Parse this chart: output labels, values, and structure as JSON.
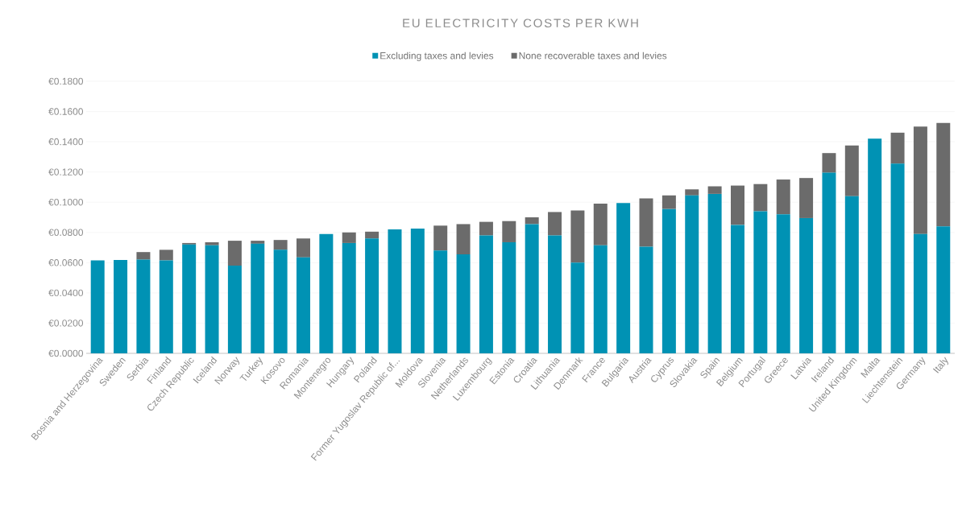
{
  "chart_data": {
    "type": "bar",
    "title": "EU ELECTRICITY COSTS PER KWH",
    "stacked": true,
    "legend": "top",
    "grid": "y",
    "categories": [
      "Bosnia and Herzegovina",
      "Sweden",
      "Serbia",
      "Finland",
      "Czech Republic",
      "Iceland",
      "Norway",
      "Turkey",
      "Kosovo",
      "Romania",
      "Montenegro",
      "Hungary",
      "Poland",
      "Former Yugoslav Republic of...",
      "Moldova",
      "Slovenia",
      "Netherlands",
      "Luxembourg",
      "Estonia",
      "Croatia",
      "Lithuania",
      "Denmark",
      "France",
      "Bulgaria",
      "Austria",
      "Cyprus",
      "Slovakia",
      "Spain",
      "Belgium",
      "Portugal",
      "Greece",
      "Latvia",
      "Ireland",
      "United Kingdom",
      "Malta",
      "Liechtenstein",
      "Germany",
      "Italy"
    ],
    "series": [
      {
        "name": "Excluding taxes and levies",
        "color": "#0092b4",
        "values": [
          0.0615,
          0.0618,
          0.062,
          0.0615,
          0.072,
          0.0715,
          0.058,
          0.0725,
          0.0685,
          0.0635,
          0.079,
          0.073,
          0.076,
          0.082,
          0.0825,
          0.068,
          0.0655,
          0.078,
          0.0735,
          0.0855,
          0.078,
          0.06,
          0.0715,
          0.0995,
          0.0705,
          0.0955,
          0.1045,
          0.1055,
          0.085,
          0.094,
          0.092,
          0.0895,
          0.1195,
          0.104,
          0.142,
          0.1255,
          0.079,
          0.084
        ]
      },
      {
        "name": "None recoverable taxes and levies",
        "color": "#6b6b6b",
        "values": [
          0,
          0,
          0.005,
          0.007,
          0.001,
          0.002,
          0.0165,
          0.002,
          0.0065,
          0.0125,
          0,
          0.007,
          0.0045,
          0,
          0,
          0.0165,
          0.02,
          0.009,
          0.014,
          0.0045,
          0.0155,
          0.0345,
          0.0275,
          0,
          0.032,
          0.009,
          0.004,
          0.005,
          0.026,
          0.018,
          0.023,
          0.0265,
          0.013,
          0.0335,
          0,
          0.0205,
          0.071,
          0.0685
        ]
      }
    ],
    "ylim": [
      0,
      0.18
    ],
    "yticks": [
      {
        "value": 0,
        "label": "€0.0000"
      },
      {
        "value": 0.02,
        "label": "€0.0200"
      },
      {
        "value": 0.04,
        "label": "€0.0400"
      },
      {
        "value": 0.06,
        "label": "€0.0600"
      },
      {
        "value": 0.08,
        "label": "€0.0800"
      },
      {
        "value": 0.1,
        "label": "€0.1000"
      },
      {
        "value": 0.12,
        "label": "€0.1200"
      },
      {
        "value": 0.14,
        "label": "€0.1400"
      },
      {
        "value": 0.16,
        "label": "€0.1600"
      },
      {
        "value": 0.18,
        "label": "€0.1800"
      }
    ]
  }
}
